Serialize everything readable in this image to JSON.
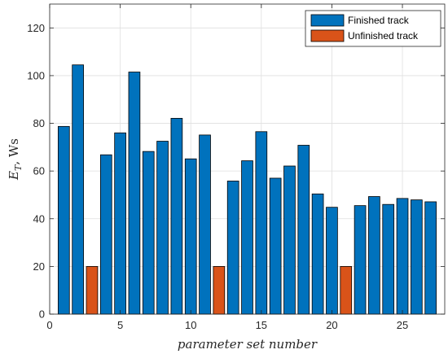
{
  "chart_data": {
    "type": "bar",
    "xlabel": "parameter set number",
    "ylabel_main": "E",
    "ylabel_sub": "T",
    "ylabel_unit": ", Ws",
    "xlim": [
      0,
      28
    ],
    "ylim": [
      0,
      130
    ],
    "xticks": [
      0,
      5,
      10,
      15,
      20,
      25
    ],
    "yticks": [
      0,
      20,
      40,
      60,
      80,
      100,
      120
    ],
    "grid": true,
    "legend_position": "top-right",
    "colors": {
      "finished": "#0072BD",
      "unfinished": "#D95319"
    },
    "series": [
      {
        "name": "Finished track",
        "x": [
          1,
          2,
          4,
          5,
          6,
          7,
          8,
          9,
          10,
          11,
          13,
          14,
          15,
          16,
          17,
          18,
          19,
          20,
          22,
          23,
          24,
          25,
          26,
          27
        ],
        "values": [
          78.7,
          104.5,
          66.8,
          76.0,
          101.5,
          68.2,
          72.5,
          82.1,
          65.1,
          75.1,
          55.8,
          64.3,
          76.5,
          57.0,
          62.1,
          70.8,
          50.4,
          44.8,
          45.5,
          49.3,
          46.0,
          48.5,
          47.9,
          47.1
        ]
      },
      {
        "name": "Unfinished track",
        "x": [
          3,
          12,
          21
        ],
        "values": [
          20,
          20,
          20
        ]
      }
    ]
  }
}
